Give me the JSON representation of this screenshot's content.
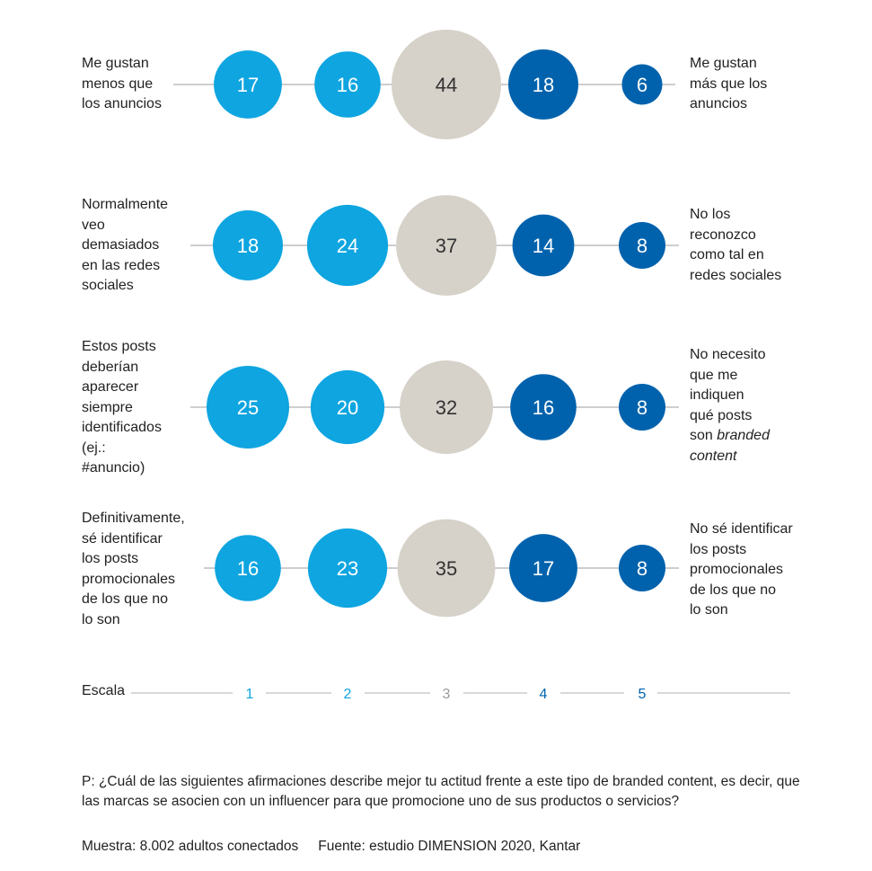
{
  "chart_data": {
    "type": "bubble",
    "scale_label": "Escala",
    "scale": [
      "1",
      "2",
      "3",
      "4",
      "5"
    ],
    "colors": {
      "1": "#0ea5e0",
      "2": "#0ea5e0",
      "3": "#d6d1c9",
      "4": "#0062ad",
      "5": "#0062ad",
      "line": "#9e9e9e"
    },
    "rows": [
      {
        "left": [
          "Me gustan",
          "menos que",
          "los anuncios"
        ],
        "right": [
          "Me gustan",
          "más que los",
          "anuncios"
        ],
        "values": [
          17,
          16,
          44,
          18,
          6
        ]
      },
      {
        "left": [
          "Normalmente",
          "veo",
          "demasiados",
          "en las redes",
          "sociales"
        ],
        "right": [
          "No los",
          "reconozco",
          "como tal en",
          "redes sociales"
        ],
        "values": [
          18,
          24,
          37,
          14,
          8
        ]
      },
      {
        "left": [
          "Estos posts",
          "deberían",
          "aparecer",
          "siempre",
          "identificados",
          "(ej.:",
          "#anuncio)"
        ],
        "right": [
          "No necesito",
          "que me",
          "indiquen",
          "qué posts",
          "son ",
          "content"
        ],
        "right_italic": [
          "branded"
        ],
        "values": [
          25,
          20,
          32,
          16,
          8
        ]
      },
      {
        "left": [
          "Definitivamente,",
          "sé identificar",
          "los posts",
          "promocionales",
          "de los que no",
          "lo son"
        ],
        "right": [
          "No sé identificar",
          "los posts",
          "promocionales",
          "de los que no",
          "lo son"
        ],
        "values": [
          16,
          23,
          35,
          17,
          8
        ]
      }
    ]
  },
  "footer": {
    "question": "P: ¿Cuál de las siguientes afirmaciones describe mejor tu actitud frente a este tipo de branded content, es decir, que las marcas se asocien con un influencer para que promocione uno de sus productos o servicios?",
    "sample": "Muestra: 8.002 adultos conectados",
    "source": "Fuente: estudio DIMENSION 2020, Kantar"
  }
}
